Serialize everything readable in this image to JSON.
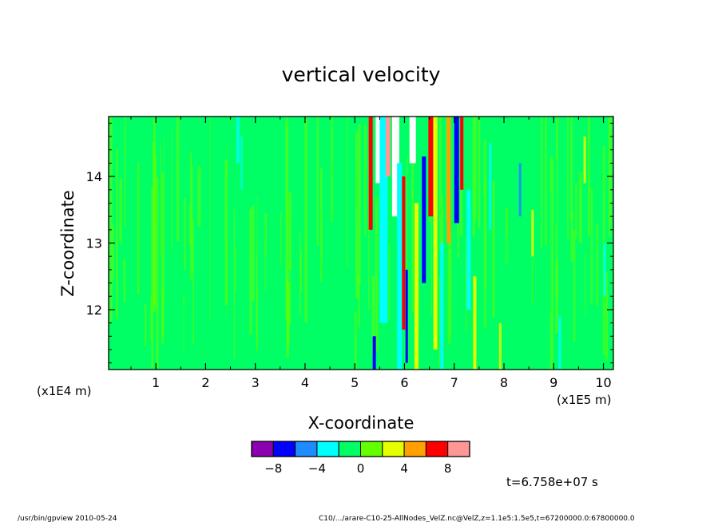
{
  "chart_data": {
    "type": "heatmap",
    "title": "vertical velocity",
    "xlabel": "X-coordinate",
    "ylabel": "Z-coordinate",
    "x_scale_label": "(x1E5 m)",
    "y_scale_label": "(x1E4 m)",
    "xlim": [
      0.05,
      10.2
    ],
    "ylim": [
      11.1,
      14.9
    ],
    "x_ticks": [
      "1",
      "2",
      "3",
      "4",
      "5",
      "6",
      "7",
      "8",
      "9",
      "10"
    ],
    "y_ticks": [
      "12",
      "13",
      "14"
    ],
    "colorbar": {
      "levels": [
        -10,
        -8,
        -6,
        -4,
        -2,
        0,
        2,
        4,
        6,
        8,
        10
      ],
      "tick_labels": [
        "-8",
        "-4",
        "0",
        "4",
        "8"
      ],
      "colors": [
        "#8a00b0",
        "#0000ff",
        "#1e8cff",
        "#00ffff",
        "#00ff64",
        "#64ff00",
        "#e6ff00",
        "#ffa000",
        "#ff0000",
        "#ff9696"
      ]
    },
    "background_level_color": "#00ff64",
    "features": [
      {
        "x_range": [
          0.05,
          5.0
        ],
        "pattern": "weak vertical streaks near 0",
        "colors": [
          "#00ff64",
          "#64ff00"
        ]
      },
      {
        "x_range": [
          2.6,
          2.8
        ],
        "pattern": "faint cyan streak",
        "colors": [
          "#00ffff"
        ]
      },
      {
        "x_range": [
          5.25,
          7.5
        ],
        "pattern": "strong alternating updraft/downdraft columns",
        "colors": [
          "#ff0000",
          "#0000ff",
          "#ffffff",
          "#e6ff00",
          "#00ffff"
        ]
      },
      {
        "x_range": [
          7.5,
          10.2
        ],
        "pattern": "moderate streaks",
        "colors": [
          "#00ffff",
          "#e6ff00",
          "#64ff00"
        ]
      }
    ]
  },
  "annotations": {
    "time": "t=6.758e+07 s",
    "footer_left": "/usr/bin/gpview   2010-05-24",
    "footer_right": "C10/.../arare-C10-25-AllNodes_VelZ.nc@VelZ,z=1.1e5:1.5e5,t=67200000.0:67800000.0"
  }
}
